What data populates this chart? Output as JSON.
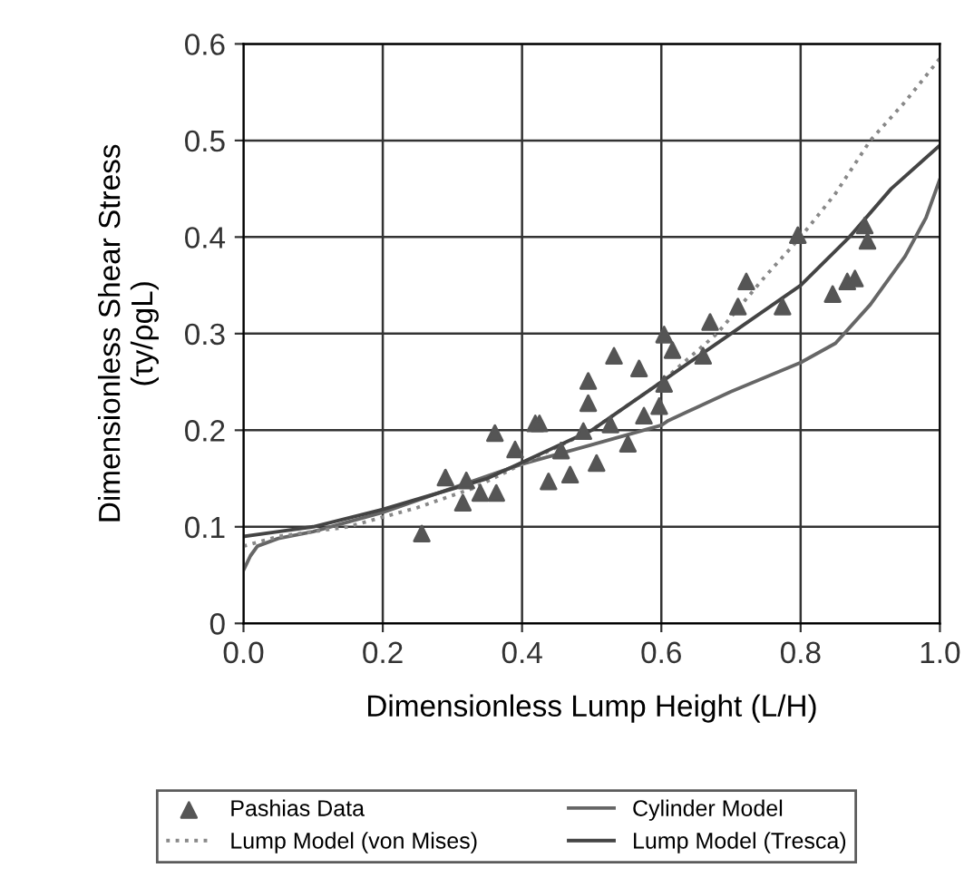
{
  "chart_data": {
    "type": "scatter",
    "xlabel": "Dimensionless Lump Height (L/H)",
    "ylabel": "Dimensionless Shear Stress\n(τy/ρgL)",
    "xlim": [
      0,
      1
    ],
    "ylim": [
      0,
      0.6
    ],
    "xticks": [
      {
        "value": 0,
        "label": "0.0"
      },
      {
        "value": 0.2,
        "label": "0.2"
      },
      {
        "value": 0.4,
        "label": "0.4"
      },
      {
        "value": 0.6,
        "label": "0.6"
      },
      {
        "value": 0.8,
        "label": "0.8"
      },
      {
        "value": 1,
        "label": "1.0"
      }
    ],
    "yticks": [
      {
        "value": 0,
        "label": "0"
      },
      {
        "value": 0.1,
        "label": "0.1"
      },
      {
        "value": 0.2,
        "label": "0.2"
      },
      {
        "value": 0.3,
        "label": "0.3"
      },
      {
        "value": 0.4,
        "label": "0.4"
      },
      {
        "value": 0.5,
        "label": "0.5"
      },
      {
        "value": 0.6,
        "label": "0.6"
      }
    ],
    "grid": true,
    "legend": "bottom",
    "series": [
      {
        "name": "Pashias Data",
        "marker": "triangle",
        "color": "#555555",
        "x": [
          0.256,
          0.29,
          0.315,
          0.32,
          0.34,
          0.363,
          0.361,
          0.39,
          0.419,
          0.425,
          0.438,
          0.456,
          0.469,
          0.495,
          0.495,
          0.488,
          0.507,
          0.527,
          0.532,
          0.552,
          0.568,
          0.575,
          0.597,
          0.604,
          0.616,
          0.604,
          0.66,
          0.67,
          0.71,
          0.722,
          0.774,
          0.796,
          0.846,
          0.867,
          0.878,
          0.892,
          0.896
        ],
        "values": [
          0.093,
          0.151,
          0.125,
          0.148,
          0.135,
          0.135,
          0.197,
          0.18,
          0.207,
          0.207,
          0.147,
          0.179,
          0.154,
          0.251,
          0.228,
          0.199,
          0.166,
          0.206,
          0.277,
          0.186,
          0.264,
          0.215,
          0.225,
          0.299,
          0.283,
          0.248,
          0.277,
          0.312,
          0.328,
          0.354,
          0.328,
          0.402,
          0.341,
          0.354,
          0.357,
          0.412,
          0.396
        ]
      },
      {
        "name": "Cylinder Model",
        "type": "line",
        "line_style": "solid",
        "marker": "none",
        "color": "#666666",
        "x": [
          0,
          0.01,
          0.02,
          0.05,
          0.1,
          0.2,
          0.3,
          0.4,
          0.5,
          0.6,
          0.61,
          0.7,
          0.8,
          0.85,
          0.9,
          0.95,
          0.98,
          1.0
        ],
        "values": [
          0.055,
          0.07,
          0.08,
          0.088,
          0.095,
          0.115,
          0.14,
          0.165,
          0.185,
          0.205,
          0.21,
          0.24,
          0.27,
          0.29,
          0.33,
          0.38,
          0.42,
          0.46
        ]
      },
      {
        "name": "Lump Model (von Mises)",
        "type": "line",
        "line_style": "dotted",
        "marker": "none",
        "color": "#888888",
        "x": [
          0,
          0.05,
          0.15,
          0.25,
          0.33,
          0.4,
          0.5,
          0.6,
          0.68,
          0.75,
          0.8,
          0.85,
          0.9,
          0.95,
          1.0
        ],
        "values": [
          0.08,
          0.09,
          0.1,
          0.12,
          0.14,
          0.165,
          0.2,
          0.25,
          0.3,
          0.36,
          0.4,
          0.445,
          0.5,
          0.54,
          0.585
        ]
      },
      {
        "name": "Lump Model (Tresca)",
        "type": "line",
        "line_style": "solid",
        "marker": "none",
        "color": "#444444",
        "x": [
          0,
          0.05,
          0.1,
          0.2,
          0.35,
          0.5,
          0.6,
          0.7,
          0.8,
          0.87,
          0.93,
          1.0
        ],
        "values": [
          0.09,
          0.095,
          0.1,
          0.118,
          0.15,
          0.2,
          0.25,
          0.3,
          0.35,
          0.4,
          0.45,
          0.495
        ]
      }
    ]
  }
}
